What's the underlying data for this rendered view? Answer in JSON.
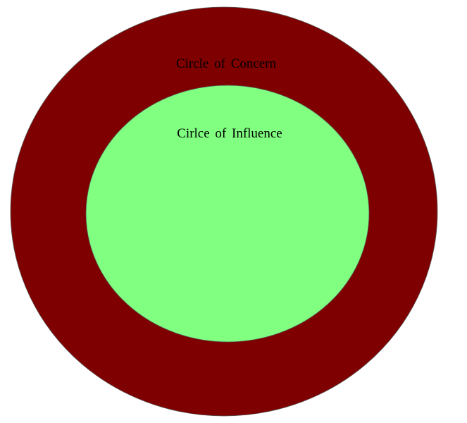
{
  "diagram": {
    "outer_circle": {
      "label": "Circle of Concern",
      "fill_color": "#7f0000",
      "stroke_color": "#555555"
    },
    "inner_circle": {
      "label": "Cirlce of Influence",
      "fill_color": "#80ff80",
      "stroke_color": "#555555"
    }
  }
}
